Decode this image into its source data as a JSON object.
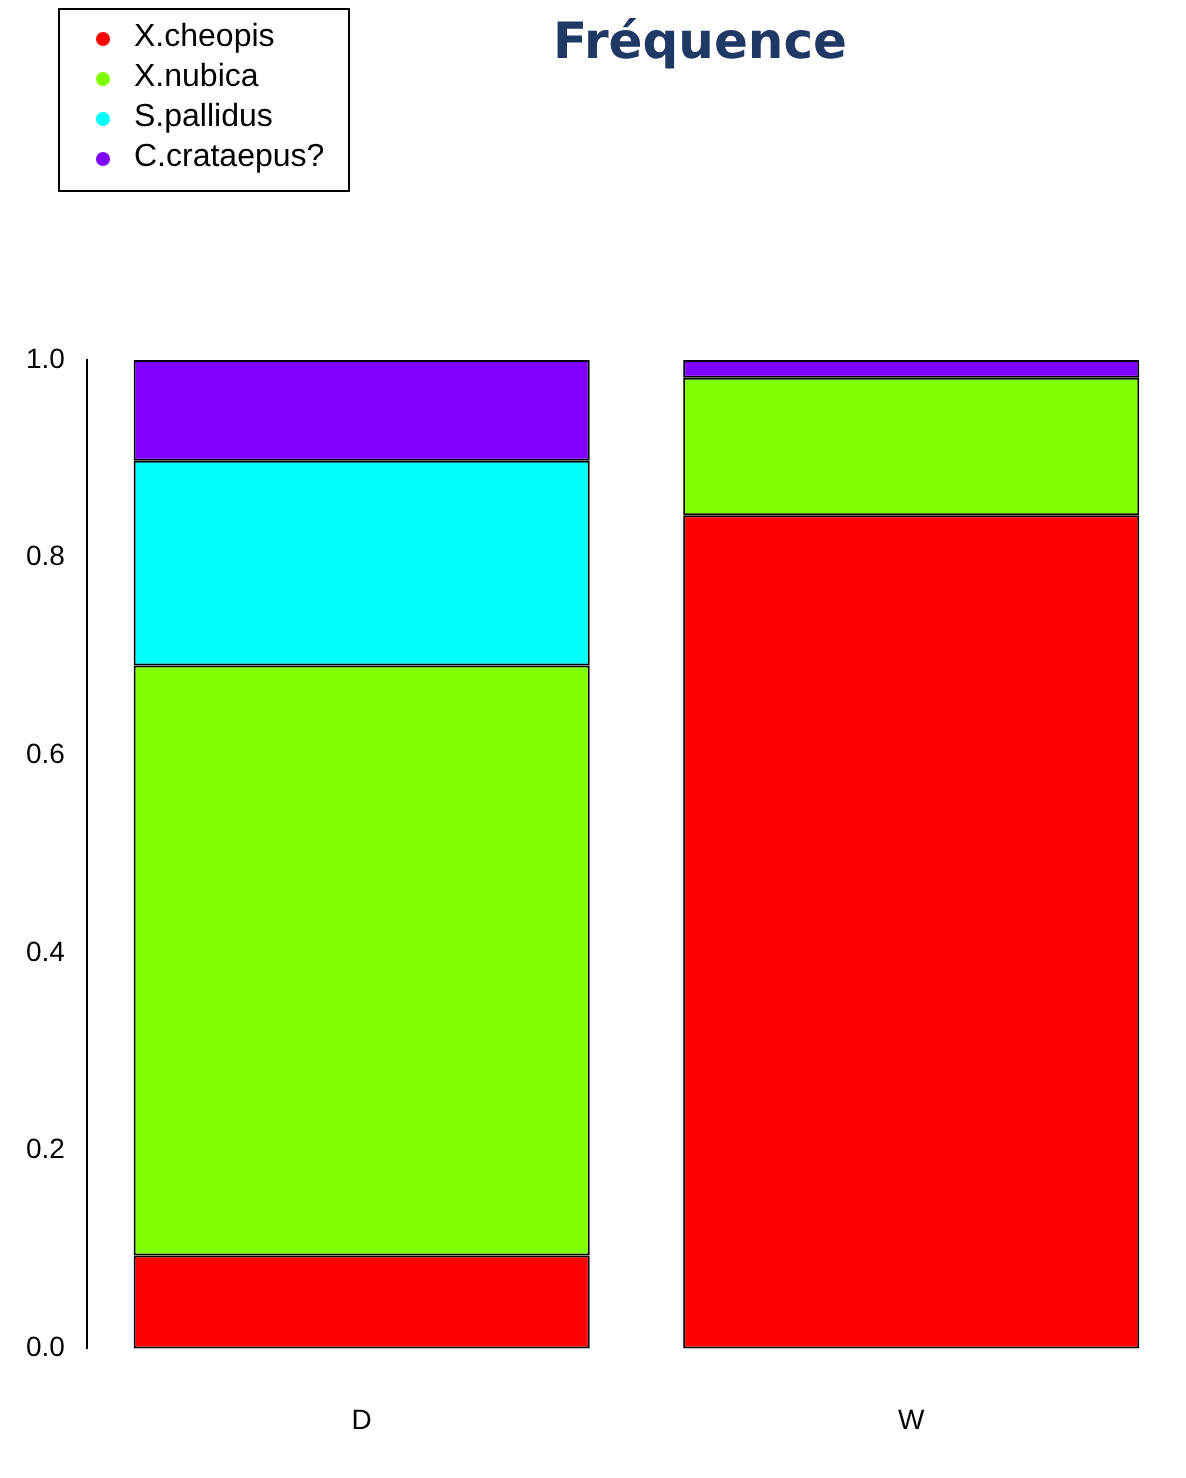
{
  "chart_data": {
    "type": "bar",
    "title": "Fréquence",
    "categories": [
      "D",
      "W"
    ],
    "stacked": true,
    "series": [
      {
        "name": "X.cheopis",
        "color": "#ff0000",
        "values": [
          0.094,
          0.843
        ]
      },
      {
        "name": "X.nubica",
        "color": "#80ff00",
        "values": [
          0.597,
          0.139
        ]
      },
      {
        "name": "S.pallidus",
        "color": "#00ffff",
        "values": [
          0.207,
          0
        ]
      },
      {
        "name": "C.crataepus?",
        "color": "#8000ff",
        "values": [
          0.102,
          0.018
        ]
      }
    ],
    "ylim": [
      0,
      1
    ],
    "yticks": [
      {
        "value": 0,
        "label": "0.0"
      },
      {
        "value": 0.2,
        "label": "0.2"
      },
      {
        "value": 0.4,
        "label": "0.4"
      },
      {
        "value": 0.6,
        "label": "0.6"
      },
      {
        "value": 0.8,
        "label": "0.8"
      },
      {
        "value": 1,
        "label": "1.0"
      }
    ],
    "grid": false,
    "legend": "top left"
  }
}
